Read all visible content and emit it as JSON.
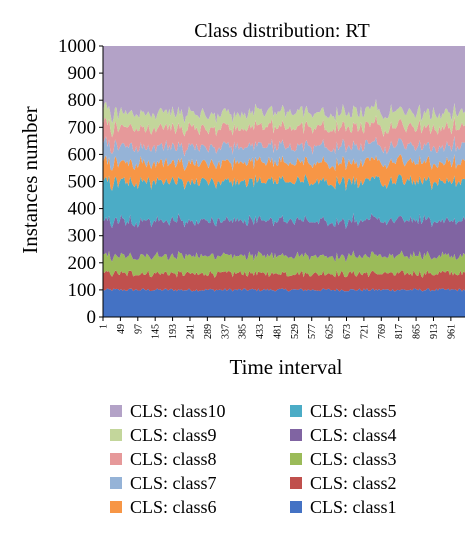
{
  "chart_data": {
    "type": "area",
    "stacked": true,
    "title": "Class distribution: RT",
    "xlabel": "Time interval",
    "ylabel": "Instances number",
    "ylim": [
      0,
      1000
    ],
    "yticks": [
      "0",
      "100",
      "200",
      "300",
      "400",
      "500",
      "600",
      "700",
      "800",
      "900",
      "1000"
    ],
    "x_range": [
      1,
      1000
    ],
    "xticks": [
      "1",
      "49",
      "97",
      "145",
      "193",
      "241",
      "289",
      "337",
      "385",
      "433",
      "481",
      "529",
      "577",
      "625",
      "673",
      "721",
      "769",
      "817",
      "865",
      "913",
      "961"
    ],
    "grid": false,
    "legend_position": "bottom",
    "series": [
      {
        "name": "CLS: class1",
        "color": "#4472C4",
        "mean": 100,
        "noise": 6
      },
      {
        "name": "CLS: class2",
        "color": "#C0504D",
        "mean": 60,
        "noise": 10
      },
      {
        "name": "CLS: class3",
        "color": "#9BBB59",
        "mean": 65,
        "noise": 10
      },
      {
        "name": "CLS: class4",
        "color": "#8064A2",
        "mean": 130,
        "noise": 12
      },
      {
        "name": "CLS: class5",
        "color": "#4BACC6",
        "mean": 145,
        "noise": 12
      },
      {
        "name": "CLS: class6",
        "color": "#F79646",
        "mean": 70,
        "noise": 10
      },
      {
        "name": "CLS: class7",
        "color": "#95B3D7",
        "mean": 60,
        "noise": 10
      },
      {
        "name": "CLS: class8",
        "color": "#E6999A",
        "mean": 70,
        "noise": 10
      },
      {
        "name": "CLS: class9",
        "color": "#C3D69B",
        "mean": 55,
        "noise": 10
      },
      {
        "name": "CLS: class10",
        "color": "#B3A2C7",
        "mean": 245,
        "noise": 12
      }
    ]
  }
}
